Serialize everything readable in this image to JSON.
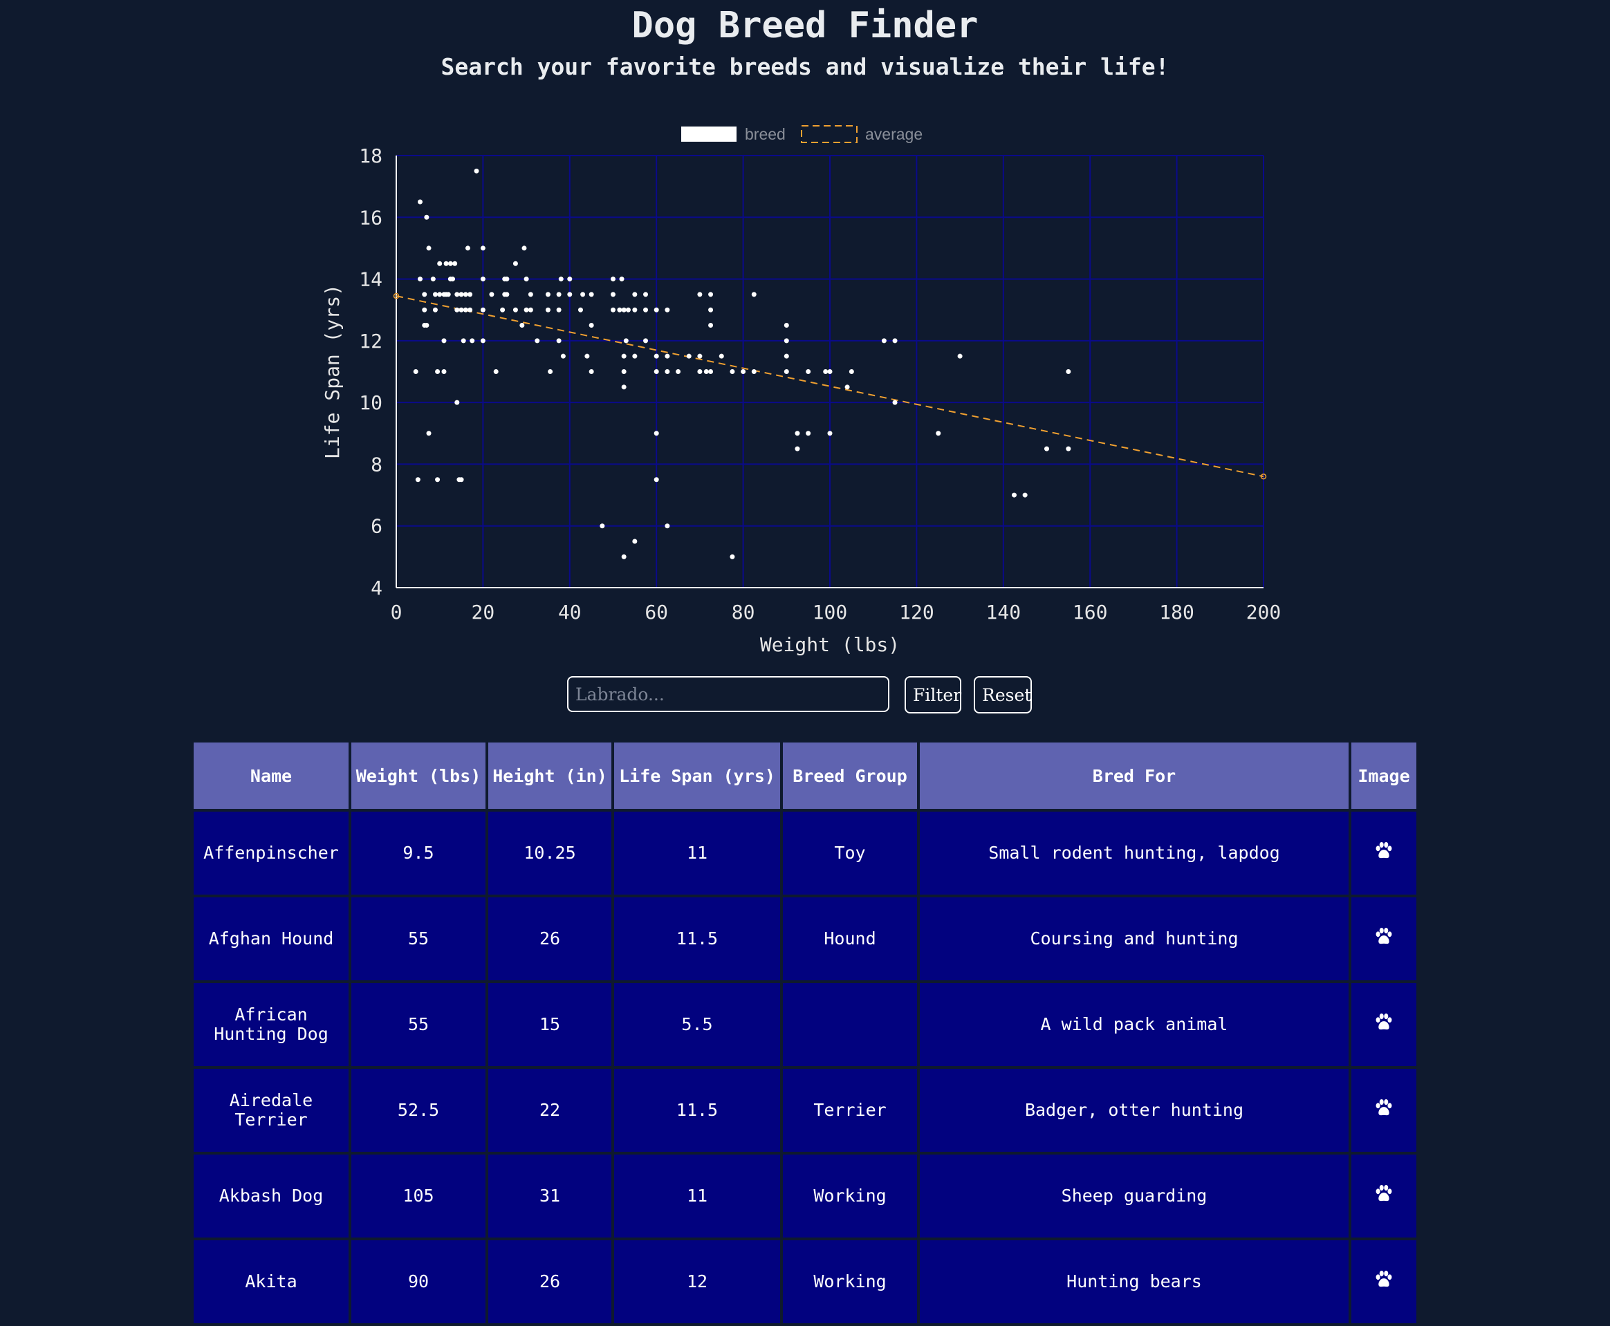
{
  "header": {
    "title": "Dog Breed Finder",
    "subtitle": "Search your favorite breeds and visualize their life!"
  },
  "chart_data": {
    "type": "scatter",
    "title": "",
    "xlabel": "Weight (lbs)",
    "ylabel": "Life Span (yrs)",
    "xlim": [
      0,
      200
    ],
    "ylim": [
      4,
      18
    ],
    "xticks": [
      0,
      20,
      40,
      60,
      80,
      100,
      120,
      140,
      160,
      180,
      200
    ],
    "yticks": [
      4,
      6,
      8,
      10,
      12,
      14,
      16,
      18
    ],
    "grid": true,
    "legend": "top-center",
    "colors": {
      "breed": "#ffffff",
      "average": "#f0a030",
      "grid": "#0a0a8a"
    },
    "series": [
      {
        "name": "breed",
        "kind": "points",
        "points": [
          [
            5.5,
            16.5
          ],
          [
            7,
            16
          ],
          [
            18.5,
            17.5
          ],
          [
            7.5,
            15
          ],
          [
            16.5,
            15
          ],
          [
            20,
            15
          ],
          [
            29.5,
            15
          ],
          [
            10,
            14.5
          ],
          [
            11.5,
            14.5
          ],
          [
            12.5,
            14.5
          ],
          [
            13.5,
            14.5
          ],
          [
            27.5,
            14.5
          ],
          [
            5.5,
            14
          ],
          [
            8.5,
            14
          ],
          [
            12.5,
            14
          ],
          [
            13,
            14
          ],
          [
            20,
            14
          ],
          [
            25,
            14
          ],
          [
            25.5,
            14
          ],
          [
            30,
            14
          ],
          [
            38,
            14
          ],
          [
            40,
            14
          ],
          [
            50,
            14
          ],
          [
            52,
            14
          ],
          [
            6.5,
            13.5
          ],
          [
            9,
            13.5
          ],
          [
            10,
            13.5
          ],
          [
            11,
            13.5
          ],
          [
            11.5,
            13.5
          ],
          [
            12,
            13.5
          ],
          [
            14,
            13.5
          ],
          [
            15,
            13.5
          ],
          [
            16,
            13.5
          ],
          [
            17,
            13.5
          ],
          [
            22,
            13.5
          ],
          [
            25,
            13.5
          ],
          [
            25.5,
            13.5
          ],
          [
            31,
            13.5
          ],
          [
            35,
            13.5
          ],
          [
            37.5,
            13.5
          ],
          [
            40,
            13.5
          ],
          [
            43,
            13.5
          ],
          [
            45,
            13.5
          ],
          [
            50,
            13.5
          ],
          [
            55,
            13.5
          ],
          [
            57.5,
            13.5
          ],
          [
            70,
            13.5
          ],
          [
            72.5,
            13.5
          ],
          [
            82.5,
            13.5
          ],
          [
            6.5,
            13
          ],
          [
            9,
            13
          ],
          [
            14,
            13
          ],
          [
            15,
            13
          ],
          [
            16,
            13
          ],
          [
            17,
            13
          ],
          [
            20,
            13
          ],
          [
            24.5,
            13
          ],
          [
            27.5,
            13
          ],
          [
            30,
            13
          ],
          [
            31,
            13
          ],
          [
            35,
            13
          ],
          [
            37.5,
            13
          ],
          [
            42.5,
            13
          ],
          [
            50,
            13
          ],
          [
            51.5,
            13
          ],
          [
            52.5,
            13
          ],
          [
            53.5,
            13
          ],
          [
            55,
            13
          ],
          [
            57.5,
            13
          ],
          [
            60,
            13
          ],
          [
            62.5,
            13
          ],
          [
            72.5,
            13
          ],
          [
            6.5,
            12.5
          ],
          [
            7,
            12.5
          ],
          [
            29,
            12.5
          ],
          [
            45,
            12.5
          ],
          [
            72.5,
            12.5
          ],
          [
            90,
            12.5
          ],
          [
            11,
            12
          ],
          [
            15.5,
            12
          ],
          [
            17.5,
            12
          ],
          [
            20,
            12
          ],
          [
            32.5,
            12
          ],
          [
            37.5,
            12
          ],
          [
            53,
            12
          ],
          [
            57.5,
            12
          ],
          [
            90,
            12
          ],
          [
            112.5,
            12
          ],
          [
            115,
            12
          ],
          [
            38.5,
            11.5
          ],
          [
            44,
            11.5
          ],
          [
            52.5,
            11.5
          ],
          [
            55,
            11.5
          ],
          [
            60,
            11.5
          ],
          [
            62.5,
            11.5
          ],
          [
            67.5,
            11.5
          ],
          [
            70,
            11.5
          ],
          [
            75,
            11.5
          ],
          [
            90,
            11.5
          ],
          [
            130,
            11.5
          ],
          [
            4.5,
            11
          ],
          [
            9.5,
            11
          ],
          [
            11,
            11
          ],
          [
            23,
            11
          ],
          [
            35.5,
            11
          ],
          [
            45,
            11
          ],
          [
            52.5,
            11
          ],
          [
            60,
            11
          ],
          [
            62.5,
            11
          ],
          [
            65,
            11
          ],
          [
            70,
            11
          ],
          [
            71.5,
            11
          ],
          [
            72.5,
            11
          ],
          [
            77.5,
            11
          ],
          [
            80,
            11
          ],
          [
            82.5,
            11
          ],
          [
            90,
            11
          ],
          [
            95,
            11
          ],
          [
            99,
            11
          ],
          [
            100,
            11
          ],
          [
            105,
            11
          ],
          [
            155,
            11
          ],
          [
            52.5,
            10.5
          ],
          [
            104,
            10.5
          ],
          [
            14,
            10
          ],
          [
            115,
            10
          ],
          [
            7.5,
            9
          ],
          [
            60,
            9
          ],
          [
            92.5,
            9
          ],
          [
            95,
            9
          ],
          [
            100,
            9
          ],
          [
            125,
            9
          ],
          [
            92.5,
            8.5
          ],
          [
            150,
            8.5
          ],
          [
            155,
            8.5
          ],
          [
            5,
            7.5
          ],
          [
            9.5,
            7.5
          ],
          [
            14.5,
            7.5
          ],
          [
            15,
            7.5
          ],
          [
            60,
            7.5
          ],
          [
            142.5,
            7
          ],
          [
            145,
            7
          ],
          [
            47.5,
            6
          ],
          [
            62.5,
            6
          ],
          [
            55,
            5.5
          ],
          [
            52.5,
            5
          ],
          [
            77.5,
            5
          ]
        ]
      },
      {
        "name": "average",
        "kind": "line",
        "dashed": true,
        "points": [
          [
            0,
            13.45
          ],
          [
            200,
            7.6
          ]
        ]
      }
    ]
  },
  "search": {
    "placeholder": "Labrado...",
    "value": ""
  },
  "buttons": {
    "filter_label": "Filter",
    "reset_label": "Reset"
  },
  "table": {
    "columns": [
      "Name",
      "Weight (lbs)",
      "Height (in)",
      "Life Span (yrs)",
      "Breed Group",
      "Bred For",
      "Image"
    ],
    "rows": [
      {
        "name": "Affenpinscher",
        "weight": "9.5",
        "height": "10.25",
        "life_span": "11",
        "group": "Toy",
        "bred_for": "Small rodent hunting, lapdog",
        "image_icon": "paw-icon"
      },
      {
        "name": "Afghan Hound",
        "weight": "55",
        "height": "26",
        "life_span": "11.5",
        "group": "Hound",
        "bred_for": "Coursing and hunting",
        "image_icon": "paw-icon"
      },
      {
        "name": "African Hunting Dog",
        "weight": "55",
        "height": "15",
        "life_span": "5.5",
        "group": "",
        "bred_for": "A wild pack animal",
        "image_icon": "paw-icon"
      },
      {
        "name": "Airedale Terrier",
        "weight": "52.5",
        "height": "22",
        "life_span": "11.5",
        "group": "Terrier",
        "bred_for": "Badger, otter hunting",
        "image_icon": "paw-icon"
      },
      {
        "name": "Akbash Dog",
        "weight": "105",
        "height": "31",
        "life_span": "11",
        "group": "Working",
        "bred_for": "Sheep guarding",
        "image_icon": "paw-icon"
      },
      {
        "name": "Akita",
        "weight": "90",
        "height": "26",
        "life_span": "12",
        "group": "Working",
        "bred_for": "Hunting bears",
        "image_icon": "paw-icon"
      }
    ]
  }
}
